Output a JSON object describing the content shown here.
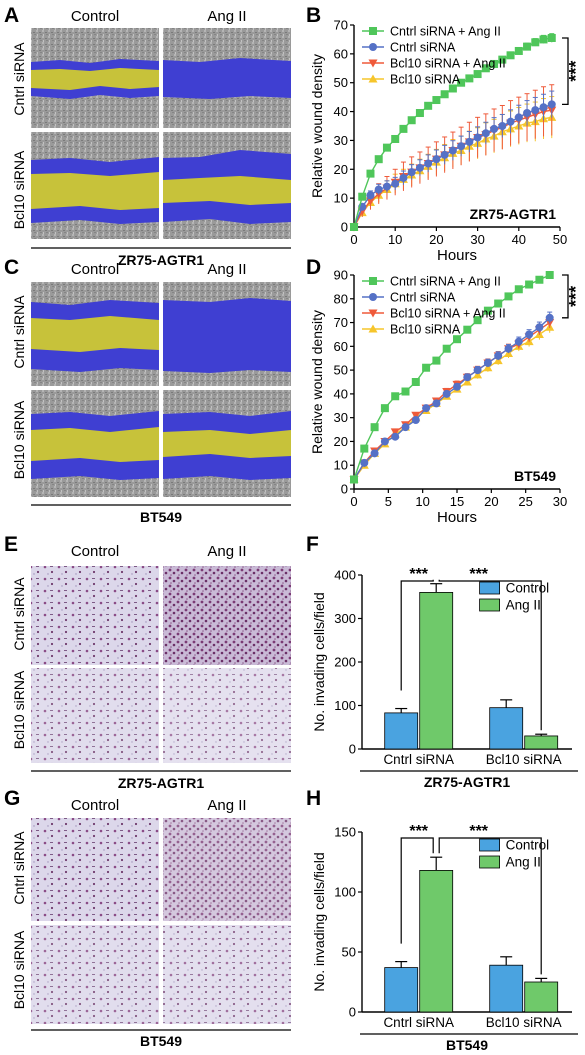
{
  "colors": {
    "green": "#4fc65a",
    "blue": "#5571c6",
    "red": "#ef5a3a",
    "yellow": "#f6c52b",
    "bar_blue": "#4aa3e0",
    "bar_green": "#6fc96a",
    "wound_yellow": "#c7c23a",
    "wound_blue": "#3f3fd2",
    "cell_gray": "#8f8f8f",
    "transwell_bg": "#d6d0e6",
    "transwell_cell": "#7a3a74"
  },
  "panel_letters": [
    "A",
    "B",
    "C",
    "D",
    "E",
    "F",
    "G",
    "H"
  ],
  "image_panels": [
    {
      "id": "A",
      "columns": [
        "Control",
        "Ang II"
      ],
      "rows": [
        "Cntrl siRNA",
        "Bcl10 siRNA"
      ],
      "cell_line": "ZR75-AGTR1"
    },
    {
      "id": "C",
      "columns": [
        "Control",
        "Ang II"
      ],
      "rows": [
        "Cntrl siRNA",
        "Bcl10 siRNA"
      ],
      "cell_line": "BT549"
    },
    {
      "id": "E",
      "columns": [
        "Control",
        "Ang II"
      ],
      "rows": [
        "Cntrl siRNA",
        "Bcl10 siRNA"
      ],
      "cell_line": "ZR75-AGTR1"
    },
    {
      "id": "G",
      "columns": [
        "Control",
        "Ang II"
      ],
      "rows": [
        "Cntrl siRNA",
        "Bcl10 siRNA"
      ],
      "cell_line": "BT549"
    }
  ],
  "chart_data": [
    {
      "id": "B",
      "type": "line",
      "xlabel": "Hours",
      "ylabel": "Relative wound density",
      "xlim": [
        0,
        50
      ],
      "ylim": [
        0,
        70
      ],
      "xticks": [
        0,
        10,
        20,
        30,
        40,
        50
      ],
      "yticks": [
        0,
        10,
        20,
        30,
        40,
        50,
        60,
        70
      ],
      "inset_label": "ZR75-AGTR1",
      "significance": "***",
      "legend_position": "top-left",
      "x": [
        0,
        2,
        4,
        6,
        8,
        10,
        12,
        14,
        16,
        18,
        20,
        22,
        24,
        26,
        28,
        30,
        32,
        34,
        36,
        38,
        40,
        42,
        44,
        46,
        48
      ],
      "series": [
        {
          "name": "Cntrl siRNA + Ang II",
          "marker": "square",
          "color": "#4fc65a",
          "values": [
            0,
            10.5,
            18.5,
            23.5,
            27.5,
            30.5,
            34,
            37,
            39.5,
            42,
            44,
            46,
            48,
            50,
            51.5,
            53,
            55,
            56.5,
            58,
            59.5,
            61,
            62.5,
            64,
            65,
            65.5
          ],
          "err": [
            0,
            0.5,
            0.5,
            0.5,
            0.5,
            0.5,
            0.6,
            0.6,
            0.6,
            0.7,
            0.7,
            0.7,
            0.8,
            0.8,
            0.8,
            0.9,
            0.9,
            1,
            1,
            1,
            1.1,
            1.2,
            1.3,
            1.4,
            1.5
          ]
        },
        {
          "name": "Cntrl siRNA",
          "marker": "circle",
          "color": "#5571c6",
          "values": [
            0,
            7,
            11,
            13,
            14,
            15,
            17,
            19,
            20.5,
            22,
            23.5,
            25,
            26.5,
            28,
            29.5,
            31,
            32.5,
            34,
            35,
            36.5,
            38,
            39.5,
            40.5,
            41.5,
            42.5
          ],
          "err": [
            0,
            1,
            1.5,
            1.8,
            2,
            2.2,
            2.4,
            2.6,
            2.8,
            3,
            3.2,
            3.3,
            3.4,
            3.5,
            3.6,
            3.7,
            3.8,
            3.9,
            4,
            4.1,
            4.2,
            4.3,
            4.4,
            4.5,
            4.6
          ]
        },
        {
          "name": "Bcl10 siRNA + Ang II",
          "marker": "triangle-down",
          "color": "#ef5a3a",
          "values": [
            0,
            5.5,
            9,
            11.5,
            13.5,
            15.5,
            17.5,
            19,
            20.5,
            22,
            23.5,
            25,
            26.5,
            28,
            29.5,
            31,
            32,
            33.5,
            34.5,
            36,
            37,
            38,
            39,
            40,
            40.5
          ],
          "err": [
            0,
            2,
            3,
            3.5,
            4,
            4.5,
            5,
            5.3,
            5.5,
            5.7,
            6,
            6.2,
            6.4,
            6.6,
            6.8,
            7,
            7.2,
            7.4,
            7.6,
            7.8,
            8,
            8.2,
            8.4,
            8.6,
            8.8
          ]
        },
        {
          "name": "Bcl10 siRNA",
          "marker": "triangle-up",
          "color": "#f6c52b",
          "values": [
            0,
            5,
            8.5,
            11,
            13,
            15,
            16.5,
            18,
            19.5,
            21,
            22.5,
            24,
            25.5,
            26.5,
            28,
            29,
            30.5,
            31.5,
            33,
            34,
            35,
            36,
            36.5,
            37.5,
            38
          ],
          "err": [
            0,
            1.5,
            2,
            2.5,
            3,
            3.3,
            3.5,
            3.8,
            4,
            4.2,
            4.4,
            4.6,
            4.8,
            5,
            5.2,
            5.4,
            5.6,
            5.8,
            6,
            6.2,
            6.4,
            6.6,
            6.8,
            7,
            7.2
          ]
        }
      ]
    },
    {
      "id": "D",
      "type": "line",
      "xlabel": "Hours",
      "ylabel": "Relative wound density",
      "xlim": [
        0,
        30
      ],
      "ylim": [
        0,
        90
      ],
      "xticks": [
        0,
        5,
        10,
        15,
        20,
        25,
        30
      ],
      "yticks": [
        0,
        10,
        20,
        30,
        40,
        50,
        60,
        70,
        80,
        90
      ],
      "inset_label": "BT549",
      "significance": "***",
      "legend_position": "top-left",
      "x": [
        0,
        1.5,
        3,
        4.5,
        6,
        7.5,
        9,
        10.5,
        12,
        13.5,
        15,
        16.5,
        18,
        19.5,
        21,
        22.5,
        24,
        25.5,
        27,
        28.5
      ],
      "series": [
        {
          "name": "Cntrl siRNA + Ang II",
          "marker": "square",
          "color": "#4fc65a",
          "values": [
            4,
            17,
            26,
            34,
            39,
            41,
            45,
            51,
            54,
            59,
            63,
            67,
            71,
            75,
            78,
            81,
            84,
            86,
            88,
            90
          ],
          "err": [
            0,
            0.5,
            0.6,
            0.7,
            0.8,
            0.8,
            0.9,
            0.9,
            1,
            1,
            1,
            1.1,
            1.1,
            1.2,
            1.2,
            1.2,
            1.3,
            1.3,
            1.3,
            1.4
          ]
        },
        {
          "name": "Cntrl siRNA",
          "marker": "circle",
          "color": "#5571c6",
          "values": [
            4,
            11,
            15,
            20,
            22,
            26,
            29,
            34,
            36,
            40,
            43,
            47,
            50,
            53,
            56,
            59,
            62,
            65,
            68,
            72
          ],
          "err": [
            0,
            0.5,
            0.6,
            0.7,
            0.8,
            0.9,
            1,
            1,
            1.1,
            1.2,
            1.3,
            1.4,
            1.5,
            1.6,
            1.7,
            1.8,
            1.9,
            2,
            2.2,
            2.4
          ]
        },
        {
          "name": "Bcl10 siRNA + Ang II",
          "marker": "triangle-down",
          "color": "#ef5a3a",
          "values": [
            4,
            11,
            16,
            20,
            24,
            27,
            31,
            34,
            37,
            41,
            44,
            47,
            50,
            53,
            56,
            59,
            61,
            64,
            67,
            70
          ],
          "err": [
            0,
            0.5,
            0.6,
            0.7,
            0.8,
            0.9,
            1,
            1.1,
            1.2,
            1.3,
            1.4,
            1.5,
            1.6,
            1.7,
            1.8,
            1.9,
            2,
            2.1,
            2.2,
            2.3
          ]
        },
        {
          "name": "Bcl10 siRNA",
          "marker": "triangle-up",
          "color": "#f6c52b",
          "values": [
            4,
            10,
            15,
            19,
            23,
            26,
            30,
            33,
            36,
            39,
            42,
            45,
            48,
            51,
            54,
            57,
            60,
            62,
            65,
            68
          ],
          "err": [
            0,
            0.5,
            0.6,
            0.7,
            0.8,
            0.9,
            1,
            1.1,
            1.2,
            1.3,
            1.4,
            1.5,
            1.6,
            1.7,
            1.8,
            1.9,
            2,
            2.1,
            2.2,
            2.3
          ]
        }
      ]
    },
    {
      "id": "F",
      "type": "bar",
      "ylabel": "No. invading cells/field",
      "ylim": [
        0,
        400
      ],
      "yticks": [
        0,
        100,
        200,
        300,
        400
      ],
      "categories": [
        "Cntrl siRNA",
        "Bcl10 siRNA"
      ],
      "cell_line": "ZR75-AGTR1",
      "legend_position": "top-right",
      "significance": [
        "***",
        "***"
      ],
      "series": [
        {
          "name": "Control",
          "color": "#4aa3e0",
          "values": [
            83,
            95
          ],
          "err": [
            10,
            18
          ]
        },
        {
          "name": "Ang II",
          "color": "#6fc96a",
          "values": [
            360,
            30
          ],
          "err": [
            20,
            4
          ]
        }
      ]
    },
    {
      "id": "H",
      "type": "bar",
      "ylabel": "No. invading cells/field",
      "ylim": [
        0,
        150
      ],
      "yticks": [
        0,
        50,
        100,
        150
      ],
      "categories": [
        "Cntrl siRNA",
        "Bcl10 siRNA"
      ],
      "cell_line": "BT549",
      "legend_position": "top-right",
      "significance": [
        "***",
        "***"
      ],
      "series": [
        {
          "name": "Control",
          "color": "#4aa3e0",
          "values": [
            37,
            39
          ],
          "err": [
            5,
            7
          ]
        },
        {
          "name": "Ang II",
          "color": "#6fc96a",
          "values": [
            118,
            25
          ],
          "err": [
            11,
            3
          ]
        }
      ]
    }
  ]
}
